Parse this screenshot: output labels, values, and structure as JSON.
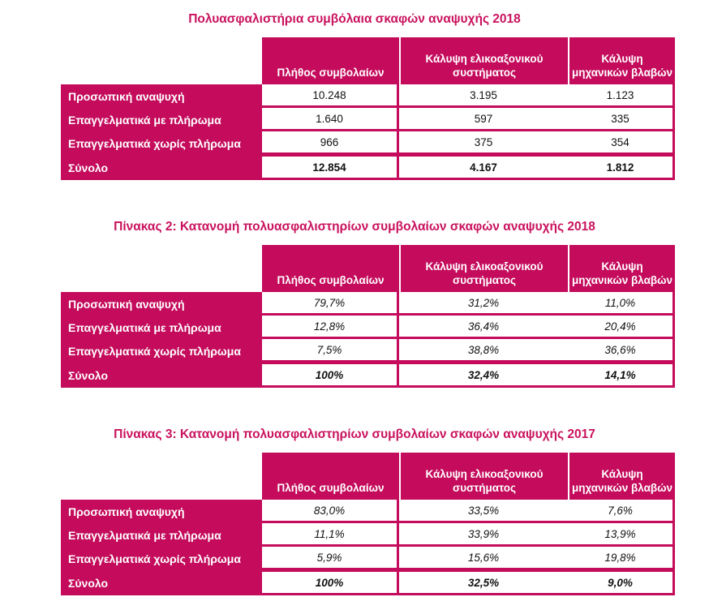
{
  "colors": {
    "accent": "#C40B5C",
    "title": "#C9125E",
    "header_text": "#FFFFFF",
    "value_text": "#111111"
  },
  "tables": [
    {
      "title": "Πολυασφαλιστήρια συμβόλαια σκαφών αναψυχής 2018",
      "col_headers": [
        "Πλήθος συμβολαίων",
        "Κάλυψη ελικοαξονικού\nσυστήματος",
        "Κάλυψη\nμηχανικών βλαβών"
      ],
      "rows": [
        {
          "label": "Προσωπική αναψυχή",
          "values": [
            "10.248",
            "3.195",
            "1.123"
          ]
        },
        {
          "label": "Επαγγελματικά με πλήρωμα",
          "values": [
            "1.640",
            "597",
            "335"
          ]
        },
        {
          "label": "Επαγγελματικά χωρίς πλήρωμα",
          "values": [
            "966",
            "375",
            "354"
          ]
        },
        {
          "label": "Σύνολο",
          "values": [
            "12.854",
            "4.167",
            "1.812"
          ]
        }
      ]
    },
    {
      "title": "Πίνακας 2: Κατανομή πολυασφαλιστηρίων συμβολαίων σκαφών αναψυχής 2018",
      "col_headers": [
        "Πλήθος συμβολαίων",
        "Κάλυψη ελικοαξονικού\nσυστήματος",
        "Κάλυψη\nμηχανικών βλαβών"
      ],
      "rows": [
        {
          "label": "Προσωπική αναψυχή",
          "values": [
            "79,7%",
            "31,2%",
            "11,0%"
          ]
        },
        {
          "label": "Επαγγελματικά με πλήρωμα",
          "values": [
            "12,8%",
            "36,4%",
            "20,4%"
          ]
        },
        {
          "label": "Επαγγελματικά χωρίς πλήρωμα",
          "values": [
            "7,5%",
            "38,8%",
            "36,6%"
          ]
        },
        {
          "label": "Σύνολο",
          "values": [
            "100%",
            "32,4%",
            "14,1%"
          ]
        }
      ]
    },
    {
      "title": "Πίνακας 3: Κατανομή πολυασφαλιστηρίων συμβολαίων σκαφών αναψυχής 2017",
      "col_headers": [
        "Πλήθος συμβολαίων",
        "Κάλυψη ελικοαξονικού\nσυστήματος",
        "Κάλυψη\nμηχανικών βλαβών"
      ],
      "rows": [
        {
          "label": "Προσωπική αναψυχή",
          "values": [
            "83,0%",
            "33,5%",
            "7,6%"
          ]
        },
        {
          "label": "Επαγγελματικά με πλήρωμα",
          "values": [
            "11,1%",
            "33,9%",
            "13,9%"
          ]
        },
        {
          "label": "Επαγγελματικά χωρίς πλήρωμα",
          "values": [
            "5,9%",
            "15,6%",
            "19,8%"
          ]
        },
        {
          "label": "Σύνολο",
          "values": [
            "100%",
            "32,5%",
            "9,0%"
          ]
        }
      ]
    }
  ]
}
